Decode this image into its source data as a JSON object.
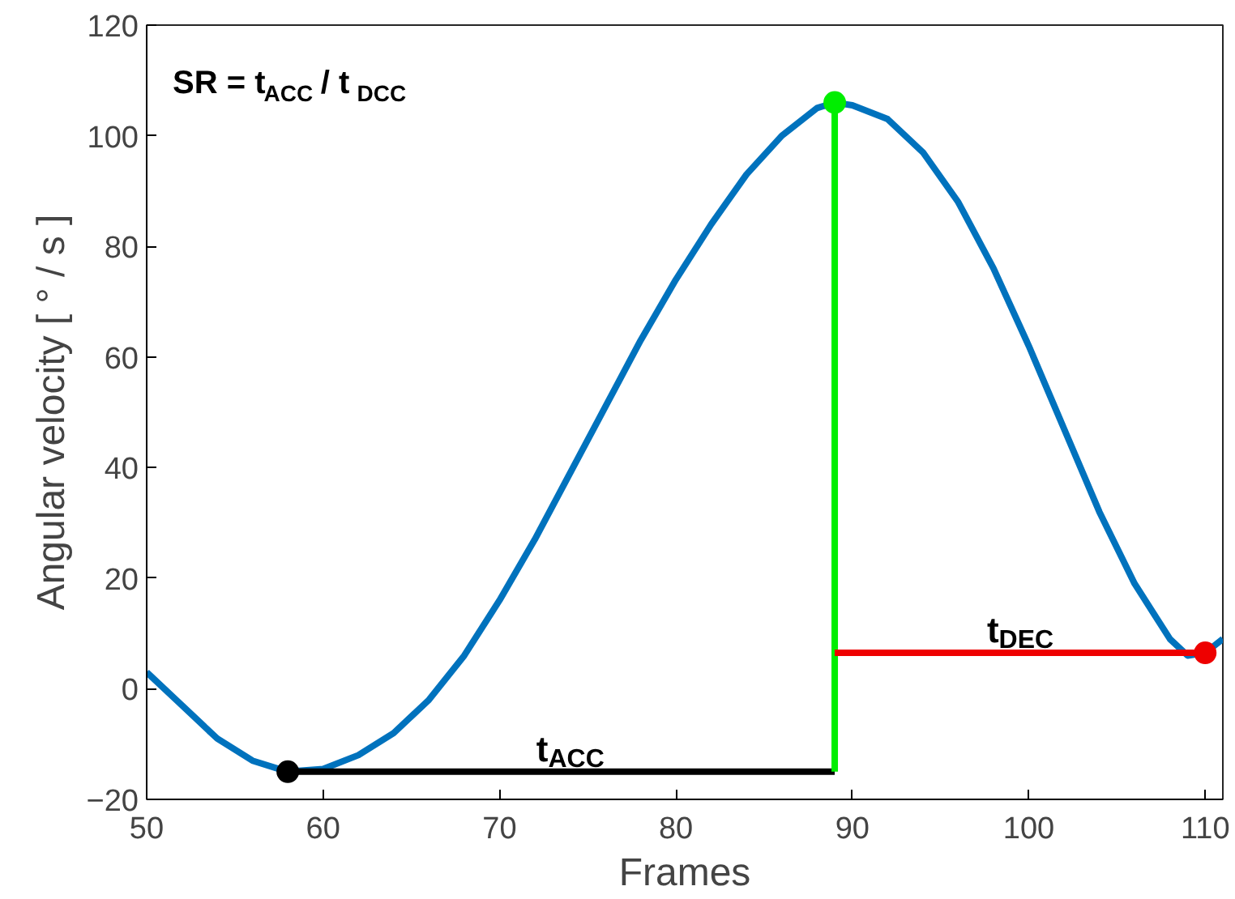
{
  "chart_data": {
    "type": "line",
    "xlabel": "Frames",
    "ylabel": "Angular velocity [ ° / s ]",
    "xlim": [
      50,
      111
    ],
    "ylim": [
      -20,
      120
    ],
    "xticks": [
      50,
      60,
      70,
      80,
      90,
      100,
      110
    ],
    "yticks": [
      -20,
      0,
      20,
      40,
      60,
      80,
      100,
      120
    ],
    "grid": false,
    "series": [
      {
        "color": "#0072bd",
        "x": [
          50,
          52,
          54,
          56,
          58,
          60,
          62,
          64,
          66,
          68,
          70,
          72,
          74,
          76,
          78,
          80,
          82,
          84,
          86,
          88,
          89,
          90,
          92,
          94,
          96,
          98,
          100,
          102,
          104,
          106,
          108,
          109,
          110,
          111
        ],
        "values": [
          3,
          -3,
          -9,
          -13,
          -15,
          -14.5,
          -12,
          -8,
          -2,
          6,
          16,
          27,
          39,
          51,
          63,
          74,
          84,
          93,
          100,
          105,
          106,
          105.5,
          103,
          97,
          88,
          76,
          62,
          47,
          32,
          19,
          9,
          6,
          6.5,
          9
        ]
      },
      {
        "color": "#000000",
        "x": [
          58,
          89
        ],
        "values": [
          -15,
          -15
        ]
      },
      {
        "color": "#00ee00",
        "x": [
          89,
          89
        ],
        "values": [
          -15,
          106
        ]
      },
      {
        "color": "#ee0000",
        "x": [
          89,
          110
        ],
        "values": [
          6.5,
          6.5
        ]
      },
      {
        "type": "scatter",
        "marker": "circle",
        "x": [
          58,
          89,
          110
        ],
        "values": [
          -15,
          106,
          6.5
        ],
        "colors": [
          "#000000",
          "#00ee00",
          "#ee0000"
        ]
      }
    ],
    "annotations": [
      "SR = t$_{ACC}$ / t$_{DCC}$",
      {
        "text": "t$_{ACC}$",
        "x": 74,
        "y": -15
      },
      {
        "text": "t$_{DEC}$",
        "x": 99.5,
        "y": 6.5
      }
    ]
  }
}
